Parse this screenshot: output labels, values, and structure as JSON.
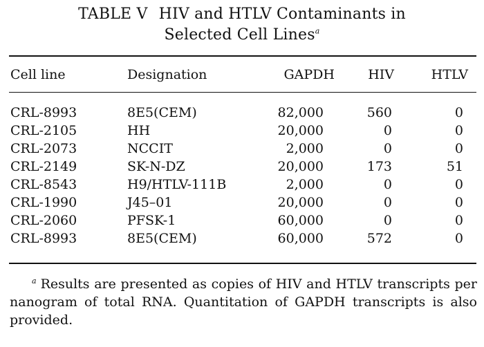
{
  "table": {
    "label": "TABLE V",
    "title_line1": "HIV and HTLV Contaminants in",
    "title_line2": "Selected Cell Lines",
    "title_footnote_mark": "a",
    "headers": [
      "Cell line",
      "Designation",
      "GAPDH",
      "HIV",
      "HTLV"
    ],
    "rows": [
      [
        "CRL-8993",
        "8E5(CEM)",
        "82,000",
        "560",
        "0"
      ],
      [
        "CRL-2105",
        "HH",
        "20,000",
        "0",
        "0"
      ],
      [
        "CRL-2073",
        "NCCIT",
        "2,000",
        "0",
        "0"
      ],
      [
        "CRL-2149",
        "SK-N-DZ",
        "20,000",
        "173",
        "51"
      ],
      [
        "CRL-8543",
        "H9/HTLV-111B",
        "2,000",
        "0",
        "0"
      ],
      [
        "CRL-1990",
        "J45–01",
        "20,000",
        "0",
        "0"
      ],
      [
        "CRL-2060",
        "PFSK-1",
        "60,000",
        "0",
        "0"
      ],
      [
        "CRL-8993",
        "8E5(CEM)",
        "60,000",
        "572",
        "0"
      ]
    ],
    "footnote_mark": "a",
    "footnote_text": "Results are presented as copies of HIV and HTLV transcripts per nanogram of total RNA. Quantitation of GAPDH transcripts is also provided."
  }
}
